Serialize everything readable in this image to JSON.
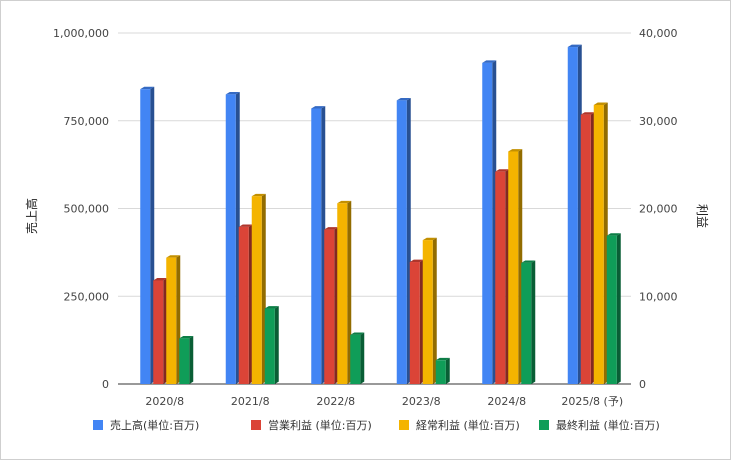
{
  "chart_data": {
    "type": "bar",
    "categories": [
      "2020/8",
      "2021/8",
      "2022/8",
      "2023/8",
      "2024/8",
      "2025/8 (予)"
    ],
    "left_axis": {
      "label": "売上高",
      "ylim": [
        0,
        1000000
      ],
      "ticks": [
        "0",
        "250,000",
        "500,000",
        "750,000",
        "1,000,000"
      ]
    },
    "right_axis": {
      "label": "利益",
      "ylim": [
        0,
        40000
      ],
      "ticks": [
        "0",
        "10,000",
        "20,000",
        "30,000",
        "40,000"
      ]
    },
    "series": [
      {
        "name": "売上高(単位:百万)",
        "axis": "left",
        "color": "#4285f4",
        "values": [
          840000,
          825000,
          785000,
          808000,
          915000,
          960000
        ]
      },
      {
        "name": "営業利益 (単位:百万)",
        "axis": "right",
        "color": "#db4437",
        "values": [
          11800,
          17900,
          17600,
          13900,
          24200,
          30700
        ]
      },
      {
        "name": "経常利益 (単位:百万)",
        "axis": "right",
        "color": "#f4b400",
        "values": [
          14400,
          21400,
          20600,
          16400,
          26500,
          31800
        ]
      },
      {
        "name": "最終利益 (単位:百万)",
        "axis": "right",
        "color": "#0f9d58",
        "values": [
          5200,
          8600,
          5600,
          2700,
          13800,
          16900
        ]
      }
    ],
    "grid": true,
    "legend_position": "bottom",
    "style": "3d-bar"
  }
}
